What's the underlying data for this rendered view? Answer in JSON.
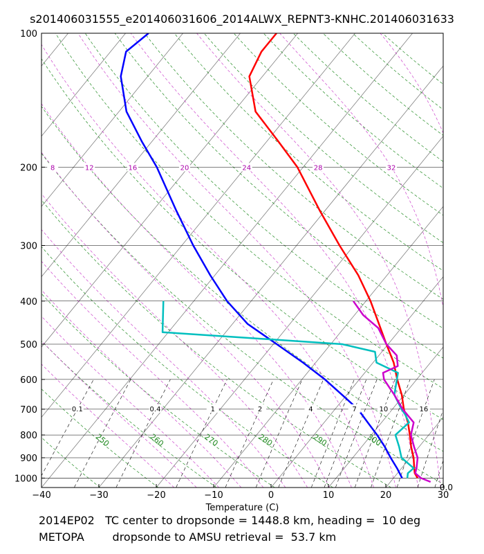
{
  "title": "s201406031555_e201406031606_2014ALWX_REPNT3-KNHC.201406031633",
  "footer": {
    "line1": "2014EP02   TC center to dropsonde = 1448.8 km, heading =  10 deg",
    "line2": "METOPA        dropsonde to AMSU retrieval =  53.7 km"
  },
  "chart_data": {
    "type": "line",
    "subtype": "skew-T log-p diagram",
    "xlabel": "Temperature (C)",
    "ylabel": "",
    "x_ticks": [
      -40,
      -30,
      -20,
      -10,
      0,
      10,
      20,
      30
    ],
    "xlim": [
      -40,
      30
    ],
    "y_scale": "log (inverted)",
    "ylim": [
      1050,
      100
    ],
    "y_ticks": [
      100,
      200,
      300,
      400,
      500,
      600,
      700,
      800,
      900,
      1000
    ],
    "corner_label": "0.0",
    "grid": true,
    "colors": {
      "isobar": "#000000",
      "isotherm": "#808080",
      "dry_adiabat": "#228B22",
      "moist_adiabat": "#CC44CC",
      "mixing_ratio": "#000000",
      "mixing_label": "#000000",
      "moist_label": "#AA00AA",
      "dry_label": "#228B22",
      "temperature": "#ff0000",
      "dewpoint": "#0000ff",
      "teal_profile": "#00BFBF",
      "magenta_profile": "#CC00CC"
    },
    "mixing_ratio_labels": [
      "0.1",
      "0.4",
      "1",
      "2",
      "4",
      "7",
      "10",
      "16"
    ],
    "moist_adiabat_labels": [
      "8",
      "12",
      "16",
      "20",
      "24",
      "28",
      "32"
    ],
    "dry_adiabat_labels": [
      "250",
      "260",
      "270",
      "280",
      "290",
      "300"
    ],
    "series": [
      {
        "color": "#ff0000",
        "points": [
          {
            "p": 1000,
            "t": 24.2
          },
          {
            "p": 975,
            "t": 23.0
          },
          {
            "p": 950,
            "t": 22.2
          },
          {
            "p": 900,
            "t": 20.6
          },
          {
            "p": 850,
            "t": 18.6
          },
          {
            "p": 800,
            "t": 16.7
          },
          {
            "p": 750,
            "t": 14.6
          },
          {
            "p": 700,
            "t": 12.0
          },
          {
            "p": 650,
            "t": 9.6
          },
          {
            "p": 600,
            "t": 6.6
          },
          {
            "p": 550,
            "t": 3.6
          },
          {
            "p": 500,
            "t": -0.3
          },
          {
            "p": 450,
            "t": -4.5
          },
          {
            "p": 400,
            "t": -9.2
          },
          {
            "p": 350,
            "t": -15.0
          },
          {
            "p": 300,
            "t": -22.5
          },
          {
            "p": 250,
            "t": -31.0
          },
          {
            "p": 200,
            "t": -41.0
          },
          {
            "p": 175,
            "t": -48.0
          },
          {
            "p": 150,
            "t": -56.2
          },
          {
            "p": 125,
            "t": -62.3
          },
          {
            "p": 110,
            "t": -63.7
          },
          {
            "p": 100,
            "t": -63.7
          }
        ]
      },
      {
        "color": "#0000ff",
        "points": [
          {
            "p": 1000,
            "t": 21.5
          },
          {
            "p": 950,
            "t": 19.2
          },
          {
            "p": 900,
            "t": 16.6
          },
          {
            "p": 850,
            "t": 14.0
          },
          {
            "p": 800,
            "t": 11.0
          },
          {
            "p": 750,
            "t": 7.6
          },
          {
            "p": 700,
            "t": 4.0
          },
          {
            "p": 650,
            "t": -0.8
          },
          {
            "p": 600,
            "t": -6.0
          },
          {
            "p": 550,
            "t": -12.2
          },
          {
            "p": 500,
            "t": -19.4
          },
          {
            "p": 450,
            "t": -27.4
          },
          {
            "p": 400,
            "t": -34.2
          },
          {
            "p": 350,
            "t": -40.8
          },
          {
            "p": 300,
            "t": -48.0
          },
          {
            "p": 250,
            "t": -56.0
          },
          {
            "p": 200,
            "t": -65.5
          },
          {
            "p": 175,
            "t": -71.8
          },
          {
            "p": 150,
            "t": -78.7
          },
          {
            "p": 125,
            "t": -84.7
          },
          {
            "p": 110,
            "t": -87.3
          },
          {
            "p": 100,
            "t": -86.0
          }
        ]
      },
      {
        "color": "#00BFBF",
        "points": [
          {
            "p": 1000,
            "t": 22.4
          },
          {
            "p": 975,
            "t": 21.8
          },
          {
            "p": 950,
            "t": 22.1
          },
          {
            "p": 900,
            "t": 18.5
          },
          {
            "p": 850,
            "t": 16.5
          },
          {
            "p": 800,
            "t": 14.2
          },
          {
            "p": 750,
            "t": 14.8
          },
          {
            "p": 720,
            "t": 13.0
          },
          {
            "p": 700,
            "t": 11.6
          },
          {
            "p": 650,
            "t": 8.3
          },
          {
            "p": 580,
            "t": 5.8
          },
          {
            "p": 550,
            "t": 0.6
          },
          {
            "p": 520,
            "t": -1.2
          },
          {
            "p": 500,
            "t": -8.0
          },
          {
            "p": 470,
            "t": -41.0
          },
          {
            "p": 400,
            "t": -45.3
          }
        ]
      },
      {
        "color": "#CC00CC",
        "points": [
          {
            "p": 1020,
            "t": 27.0
          },
          {
            "p": 1000,
            "t": 24.8
          },
          {
            "p": 975,
            "t": 23.1
          },
          {
            "p": 950,
            "t": 22.6
          },
          {
            "p": 900,
            "t": 21.3
          },
          {
            "p": 850,
            "t": 19.1
          },
          {
            "p": 800,
            "t": 16.9
          },
          {
            "p": 750,
            "t": 15.6
          },
          {
            "p": 700,
            "t": 11.8
          },
          {
            "p": 650,
            "t": 8.3
          },
          {
            "p": 600,
            "t": 4.3
          },
          {
            "p": 580,
            "t": 3.2
          },
          {
            "p": 560,
            "t": 4.8
          },
          {
            "p": 530,
            "t": 3.1
          },
          {
            "p": 500,
            "t": -0.3
          },
          {
            "p": 460,
            "t": -4.0
          },
          {
            "p": 430,
            "t": -8.5
          },
          {
            "p": 400,
            "t": -12.2
          }
        ]
      }
    ]
  }
}
